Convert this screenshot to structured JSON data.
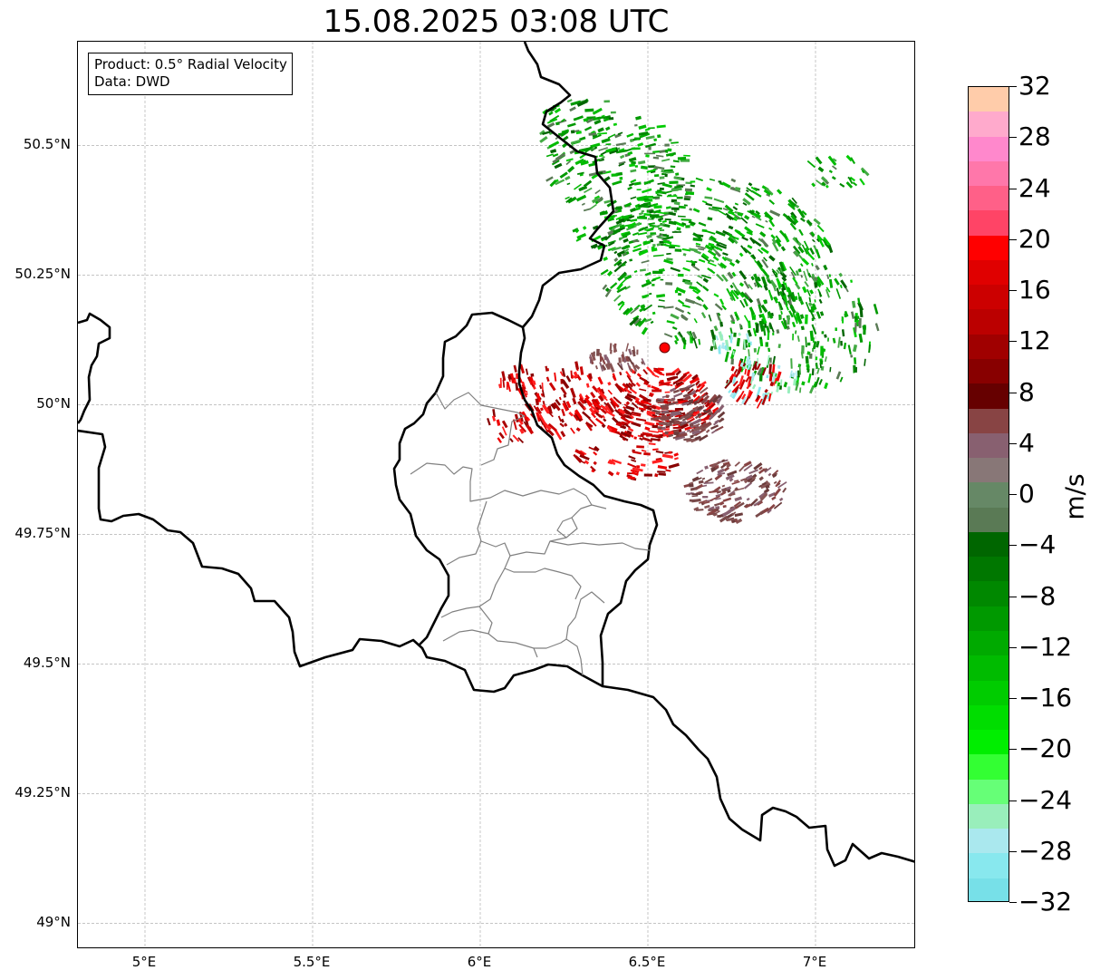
{
  "title": "15.08.2025 03:08 UTC",
  "info": {
    "product": "Product: 0.5° Radial Velocity",
    "data_source": "Data: DWD"
  },
  "map": {
    "lon_range": [
      4.8,
      7.3
    ],
    "lat_range": [
      48.95,
      50.7
    ],
    "lat_ticks": [
      {
        "value": 50.5,
        "label": "50.5°N"
      },
      {
        "value": 50.25,
        "label": "50.25°N"
      },
      {
        "value": 50.0,
        "label": "50°N"
      },
      {
        "value": 49.75,
        "label": "49.75°N"
      },
      {
        "value": 49.5,
        "label": "49.5°N"
      },
      {
        "value": 49.25,
        "label": "49.25°N"
      },
      {
        "value": 49.0,
        "label": "49°N"
      }
    ],
    "lon_ticks": [
      {
        "value": 5.0,
        "label": "5°E"
      },
      {
        "value": 5.5,
        "label": "5.5°E"
      },
      {
        "value": 6.0,
        "label": "6°E"
      },
      {
        "value": 6.5,
        "label": "6.5°E"
      },
      {
        "value": 7.0,
        "label": "7°E"
      }
    ],
    "radar_site": {
      "lon": 6.55,
      "lat": 50.11,
      "color": "#ff0000"
    },
    "gridlines": true
  },
  "colorbar": {
    "label": "m/s",
    "min": -32,
    "max": 32,
    "tick_labels": [
      "32",
      "28",
      "24",
      "20",
      "16",
      "12",
      "8",
      "4",
      "0",
      "−4",
      "−8",
      "−12",
      "−16",
      "−20",
      "−24",
      "−28",
      "−32"
    ],
    "colors_top_to_bottom": [
      "#ffccaa",
      "#ffaacc",
      "#ff88cc",
      "#ff77aa",
      "#ff6088",
      "#ff4466",
      "#ff0000",
      "#e00000",
      "#cc0000",
      "#bb0000",
      "#a00000",
      "#880000",
      "#660000",
      "#884444",
      "#886070",
      "#887777",
      "#668866",
      "#5a7a55",
      "#006600",
      "#007700",
      "#008800",
      "#009900",
      "#00aa00",
      "#00bb00",
      "#00cc00",
      "#00dd00",
      "#00ee00",
      "#33ff33",
      "#66ff77",
      "#99eebb",
      "#aae8ee",
      "#88e8ee",
      "#77e0e8"
    ]
  },
  "colors": {
    "border": "#000000",
    "admin_border": "#808080",
    "grid": "#b0b0b0"
  }
}
